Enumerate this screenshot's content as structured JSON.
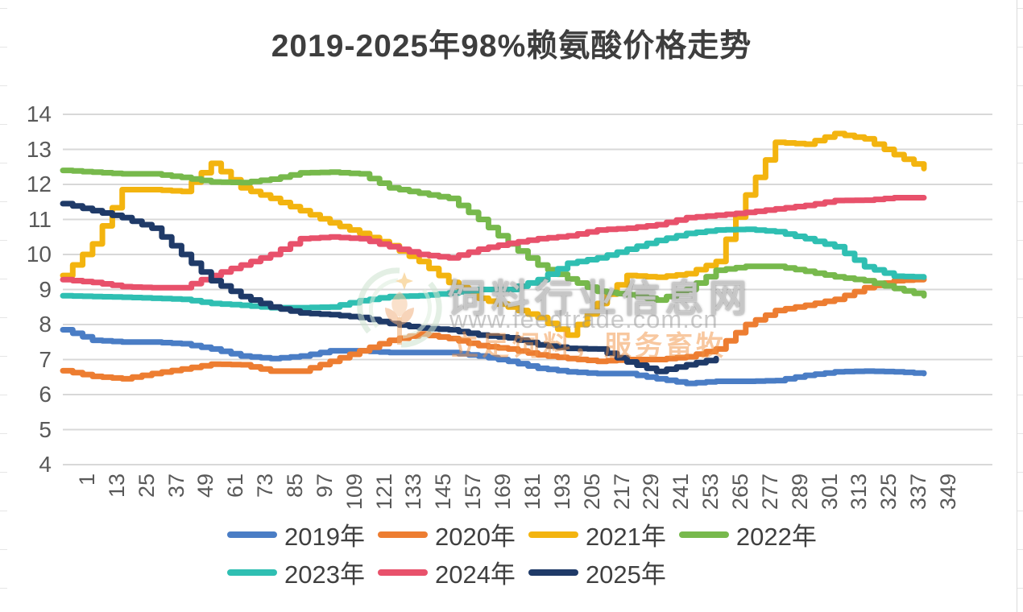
{
  "chart_data": {
    "type": "line",
    "title": "2019-2025年98%赖氨酸价格走势",
    "xlabel": "",
    "ylabel": "",
    "ylim": [
      4,
      14
    ],
    "y_ticks": [
      14,
      13,
      12,
      11,
      10,
      9,
      8,
      7,
      6,
      5,
      4
    ],
    "x": [
      1,
      13,
      25,
      37,
      49,
      61,
      73,
      85,
      97,
      109,
      121,
      133,
      145,
      157,
      169,
      181,
      193,
      205,
      217,
      229,
      241,
      253,
      265,
      277,
      289,
      301,
      313,
      325,
      337,
      349
    ],
    "x_tick_labels": [
      "1",
      "13",
      "25",
      "37",
      "49",
      "61",
      "73",
      "85",
      "97",
      "109",
      "121",
      "133",
      "145",
      "157",
      "169",
      "181",
      "193",
      "205",
      "217",
      "229",
      "241",
      "253",
      "265",
      "277",
      "289",
      "301",
      "313",
      "325",
      "337",
      "349"
    ],
    "grid": true,
    "legend_position": "bottom",
    "series": [
      {
        "name": "2019年",
        "color": "#4A7DC5",
        "values": [
          7.85,
          7.55,
          7.5,
          7.5,
          7.45,
          7.3,
          7.1,
          7.03,
          7.1,
          7.25,
          7.25,
          7.2,
          7.2,
          7.2,
          7.1,
          6.95,
          6.75,
          6.65,
          6.6,
          6.6,
          6.45,
          6.32,
          6.38,
          6.38,
          6.4,
          6.55,
          6.65,
          6.67,
          6.65,
          6.6
        ]
      },
      {
        "name": "2020年",
        "color": "#ED7D31",
        "values": [
          6.68,
          6.52,
          6.45,
          6.6,
          6.73,
          6.87,
          6.85,
          6.67,
          6.67,
          6.95,
          7.25,
          7.55,
          7.73,
          7.6,
          7.4,
          7.3,
          7.13,
          7.03,
          6.95,
          7.0,
          7.0,
          7.08,
          7.3,
          8.0,
          8.4,
          8.55,
          8.72,
          9.05,
          9.25,
          9.3
        ]
      },
      {
        "name": "2021年",
        "color": "#F3B40F",
        "values": [
          9.4,
          10.3,
          11.85,
          11.85,
          11.8,
          12.6,
          11.9,
          11.6,
          11.25,
          10.9,
          10.6,
          10.25,
          9.8,
          9.2,
          8.75,
          8.5,
          8.2,
          7.7,
          8.6,
          9.4,
          9.35,
          9.45,
          9.8,
          11.7,
          13.2,
          13.15,
          13.45,
          13.3,
          12.85,
          12.45
        ]
      },
      {
        "name": "2022年",
        "color": "#77B94C",
        "values": [
          12.4,
          12.35,
          12.3,
          12.3,
          12.2,
          12.07,
          12.05,
          12.15,
          12.33,
          12.35,
          12.3,
          11.9,
          11.75,
          11.6,
          11.0,
          10.3,
          9.7,
          9.3,
          8.95,
          8.85,
          8.7,
          9.0,
          9.55,
          9.66,
          9.66,
          9.52,
          9.36,
          9.25,
          9.03,
          8.82
        ]
      },
      {
        "name": "2023年",
        "color": "#2FBFB2",
        "values": [
          8.82,
          8.8,
          8.78,
          8.75,
          8.72,
          8.6,
          8.55,
          8.48,
          8.48,
          8.5,
          8.68,
          8.8,
          8.82,
          8.9,
          9.0,
          9.0,
          9.28,
          9.75,
          9.9,
          10.15,
          10.4,
          10.6,
          10.7,
          10.72,
          10.65,
          10.45,
          10.22,
          9.65,
          9.38,
          9.35
        ]
      },
      {
        "name": "2024年",
        "color": "#E8516B",
        "values": [
          9.28,
          9.2,
          9.08,
          9.05,
          9.05,
          9.4,
          9.7,
          10.0,
          10.45,
          10.5,
          10.45,
          10.22,
          10.0,
          9.9,
          10.15,
          10.32,
          10.45,
          10.53,
          10.7,
          10.75,
          10.85,
          11.05,
          11.12,
          11.2,
          11.3,
          11.4,
          11.54,
          11.55,
          11.62,
          11.62
        ]
      },
      {
        "name": "2025年",
        "color": "#1F3A68",
        "values": [
          11.45,
          11.25,
          11.05,
          10.75,
          10.0,
          9.25,
          8.8,
          8.5,
          8.33,
          8.28,
          8.2,
          8.03,
          7.9,
          7.85,
          7.7,
          7.62,
          7.42,
          7.32,
          7.3,
          6.93,
          6.66,
          6.85,
          7.03,
          null,
          null,
          null,
          null,
          null,
          null,
          null
        ]
      }
    ]
  },
  "watermark": {
    "site_name": "饲料行业信息网",
    "site_url": "www.feedtrade.com.cn",
    "slogan": "立足饲料，服务畜牧",
    "logo": "feedtrade-logo"
  },
  "colors": {
    "grid": "#D8D8D8",
    "axis_text": "#595959",
    "title_text": "#3E3E3E",
    "legend_text": "#3F3F3F"
  }
}
